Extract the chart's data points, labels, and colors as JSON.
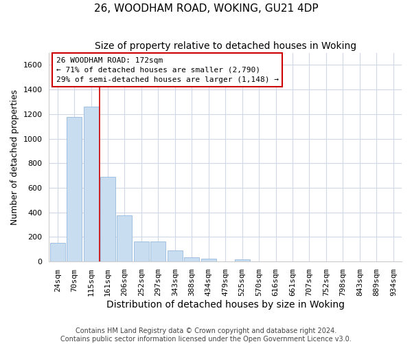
{
  "title1": "26, WOODHAM ROAD, WOKING, GU21 4DP",
  "title2": "Size of property relative to detached houses in Woking",
  "xlabel": "Distribution of detached houses by size in Woking",
  "ylabel": "Number of detached properties",
  "categories": [
    "24sqm",
    "70sqm",
    "115sqm",
    "161sqm",
    "206sqm",
    "252sqm",
    "297sqm",
    "343sqm",
    "388sqm",
    "434sqm",
    "479sqm",
    "525sqm",
    "570sqm",
    "616sqm",
    "661sqm",
    "707sqm",
    "752sqm",
    "798sqm",
    "843sqm",
    "889sqm",
    "934sqm"
  ],
  "values": [
    150,
    1175,
    1260,
    690,
    375,
    165,
    165,
    90,
    35,
    22,
    0,
    18,
    0,
    0,
    0,
    0,
    0,
    0,
    0,
    0,
    0
  ],
  "bar_color": "#c9ddf0",
  "bar_edge_color": "#a0c0e0",
  "vline_color": "#cc0000",
  "vline_pos": 2.5,
  "annotation_text": "26 WOODHAM ROAD: 172sqm\n← 71% of detached houses are smaller (2,790)\n29% of semi-detached houses are larger (1,148) →",
  "ylim": [
    0,
    1700
  ],
  "yticks": [
    0,
    200,
    400,
    600,
    800,
    1000,
    1200,
    1400,
    1600
  ],
  "footer1": "Contains HM Land Registry data © Crown copyright and database right 2024.",
  "footer2": "Contains public sector information licensed under the Open Government Licence v3.0.",
  "bg_color": "#ffffff",
  "grid_color": "#d0d8e8",
  "title1_fontsize": 11,
  "title2_fontsize": 10,
  "xlabel_fontsize": 10,
  "ylabel_fontsize": 9,
  "tick_fontsize": 8,
  "annotation_fontsize": 8,
  "footer_fontsize": 7
}
